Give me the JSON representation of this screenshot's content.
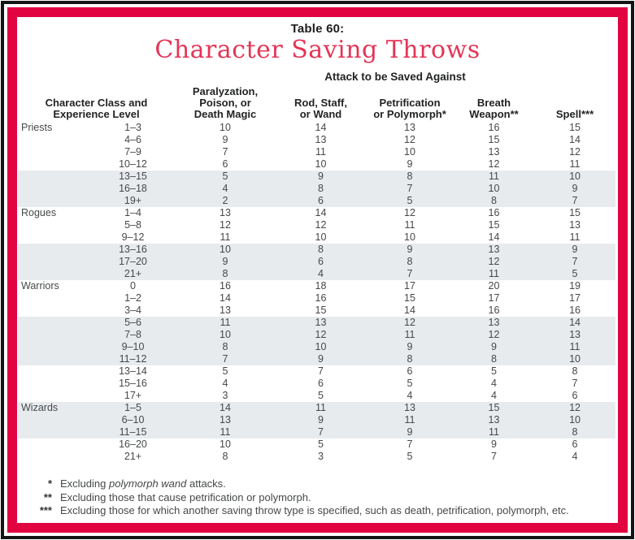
{
  "colors": {
    "frame_black": "#141414",
    "frame_red": "#e20341",
    "title_red": "#e43557",
    "shaded_row": "#e8ebee",
    "text": "#46484a"
  },
  "header": {
    "table_number": "Table 60:",
    "title": "Character Saving Throws",
    "attack_header": "Attack to be Saved Against"
  },
  "columns": {
    "class_level": "Character Class and\nExperience Level",
    "paralyzation": "Paralyzation,\nPoison, or\nDeath Magic",
    "rod": "Rod, Staff,\nor Wand",
    "petrification": "Petrification\nor Polymorph*",
    "breath": "Breath\nWeapon**",
    "spell": "Spell***"
  },
  "groups": [
    {
      "name": "Priests",
      "rows": [
        {
          "level": "1–3",
          "values": [
            10,
            14,
            13,
            16,
            15
          ],
          "shaded": false
        },
        {
          "level": "4–6",
          "values": [
            9,
            13,
            12,
            15,
            14
          ],
          "shaded": false
        },
        {
          "level": "7–9",
          "values": [
            7,
            11,
            10,
            13,
            12
          ],
          "shaded": false
        },
        {
          "level": "10–12",
          "values": [
            6,
            10,
            9,
            12,
            11
          ],
          "shaded": false
        },
        {
          "level": "13–15",
          "values": [
            5,
            9,
            8,
            11,
            10
          ],
          "shaded": true
        },
        {
          "level": "16–18",
          "values": [
            4,
            8,
            7,
            10,
            9
          ],
          "shaded": true
        },
        {
          "level": "19+",
          "values": [
            2,
            6,
            5,
            8,
            7
          ],
          "shaded": true
        }
      ]
    },
    {
      "name": "Rogues",
      "rows": [
        {
          "level": "1–4",
          "values": [
            13,
            14,
            12,
            16,
            15
          ],
          "shaded": false
        },
        {
          "level": "5–8",
          "values": [
            12,
            12,
            11,
            15,
            13
          ],
          "shaded": false
        },
        {
          "level": "9–12",
          "values": [
            11,
            10,
            10,
            14,
            11
          ],
          "shaded": false
        },
        {
          "level": "13–16",
          "values": [
            10,
            8,
            9,
            13,
            9
          ],
          "shaded": true
        },
        {
          "level": "17–20",
          "values": [
            9,
            6,
            8,
            12,
            7
          ],
          "shaded": true
        },
        {
          "level": "21+",
          "values": [
            8,
            4,
            7,
            11,
            5
          ],
          "shaded": true
        }
      ]
    },
    {
      "name": "Warriors",
      "rows": [
        {
          "level": "0",
          "values": [
            16,
            18,
            17,
            20,
            19
          ],
          "shaded": false
        },
        {
          "level": "1–2",
          "values": [
            14,
            16,
            15,
            17,
            17
          ],
          "shaded": false
        },
        {
          "level": "3–4",
          "values": [
            13,
            15,
            14,
            16,
            16
          ],
          "shaded": false
        },
        {
          "level": "5–6",
          "values": [
            11,
            13,
            12,
            13,
            14
          ],
          "shaded": true
        },
        {
          "level": "7–8",
          "values": [
            10,
            12,
            11,
            12,
            13
          ],
          "shaded": true
        },
        {
          "level": "9–10",
          "values": [
            8,
            10,
            9,
            9,
            11
          ],
          "shaded": true
        },
        {
          "level": "11–12",
          "values": [
            7,
            9,
            8,
            8,
            10
          ],
          "shaded": true
        },
        {
          "level": "13–14",
          "values": [
            5,
            7,
            6,
            5,
            8
          ],
          "shaded": false
        },
        {
          "level": "15–16",
          "values": [
            4,
            6,
            5,
            4,
            7
          ],
          "shaded": false
        },
        {
          "level": "17+",
          "values": [
            3,
            5,
            4,
            4,
            6
          ],
          "shaded": false
        }
      ]
    },
    {
      "name": "Wizards",
      "rows": [
        {
          "level": "1–5",
          "values": [
            14,
            11,
            13,
            15,
            12
          ],
          "shaded": true
        },
        {
          "level": "6–10",
          "values": [
            13,
            9,
            11,
            13,
            10
          ],
          "shaded": true
        },
        {
          "level": "11–15",
          "values": [
            11,
            7,
            9,
            11,
            8
          ],
          "shaded": true
        },
        {
          "level": "16–20",
          "values": [
            10,
            5,
            7,
            9,
            6
          ],
          "shaded": false
        },
        {
          "level": "21+",
          "values": [
            8,
            3,
            5,
            7,
            4
          ],
          "shaded": false
        }
      ]
    }
  ],
  "footnotes": [
    {
      "marker": "*",
      "parts": [
        {
          "text": "Excluding ",
          "italic": false
        },
        {
          "text": "polymorph wand",
          "italic": true
        },
        {
          "text": " attacks.",
          "italic": false
        }
      ]
    },
    {
      "marker": "**",
      "parts": [
        {
          "text": "Excluding those that cause petrification or polymorph.",
          "italic": false
        }
      ]
    },
    {
      "marker": "***",
      "parts": [
        {
          "text": "Excluding those for which another saving throw type is specified, such as death, petrification, polymorph, etc.",
          "italic": false
        }
      ]
    }
  ]
}
